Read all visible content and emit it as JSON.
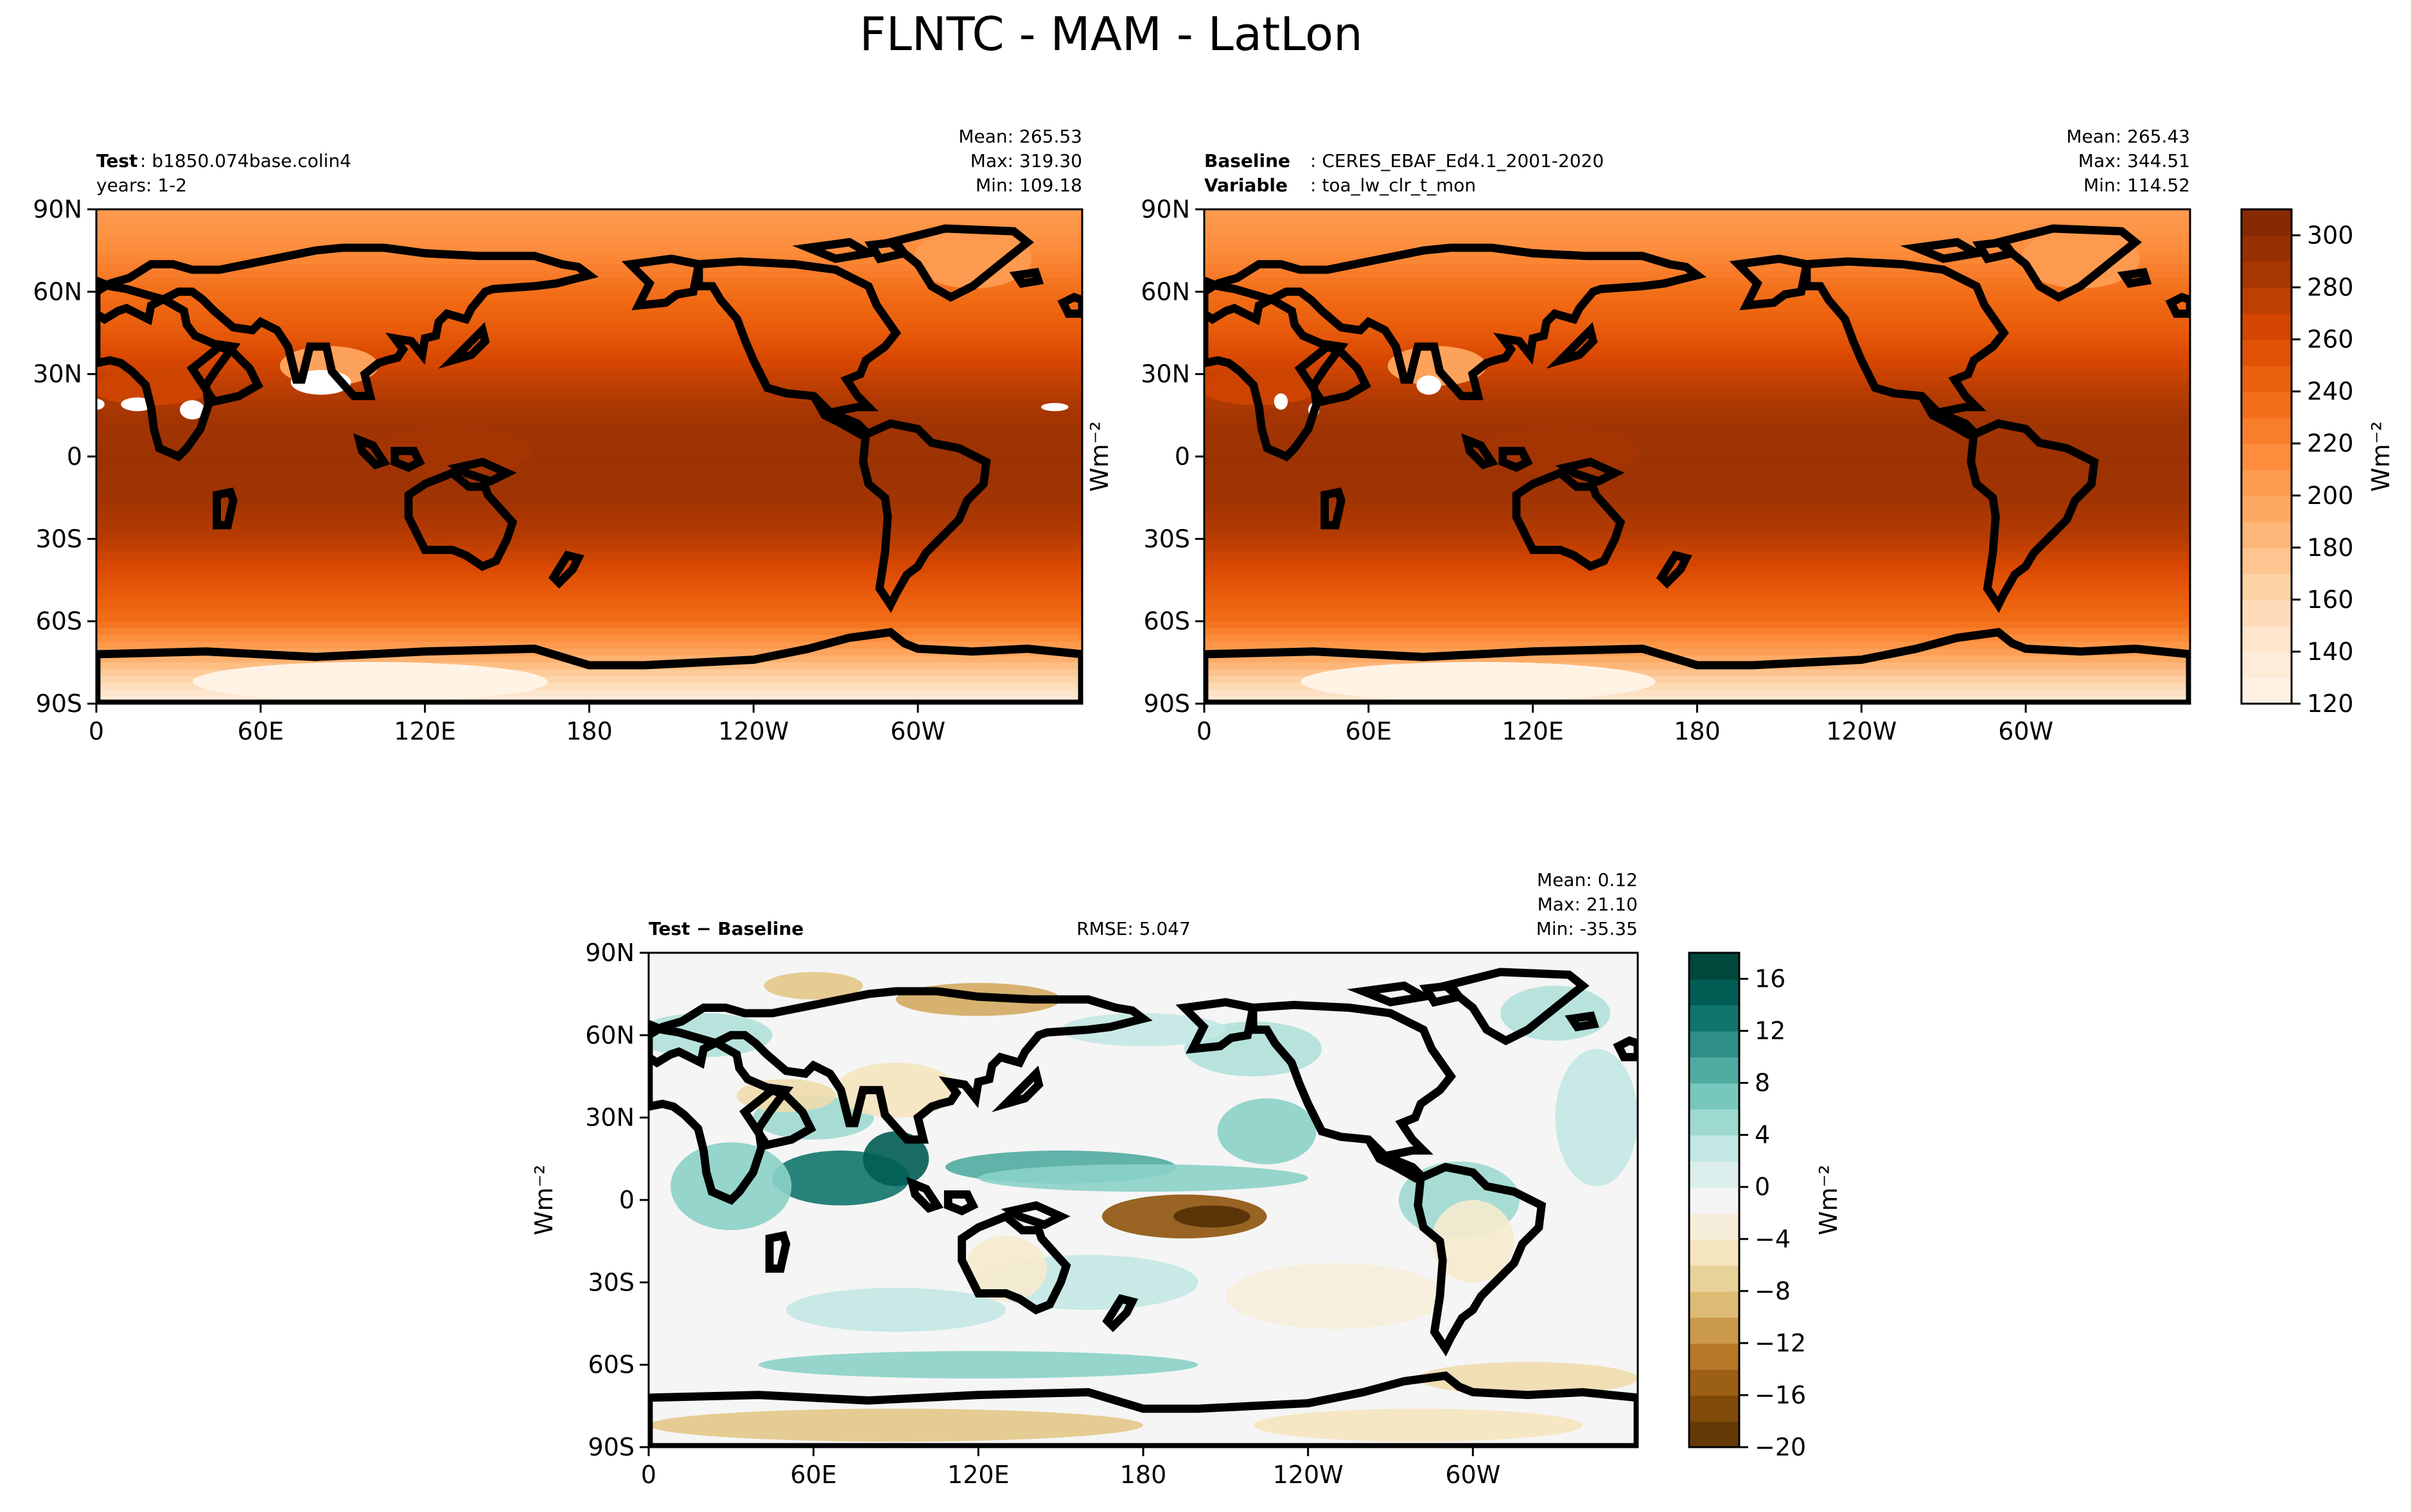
{
  "figure": {
    "title": "FLNTC - MAM - LatLon"
  },
  "colors": {
    "sequential": [
      "#fff5eb",
      "#fee6ce",
      "#fdd0a2",
      "#fdae6b",
      "#fd8d3c",
      "#f16913",
      "#d94801",
      "#a63603",
      "#7f2704"
    ],
    "diverging": [
      "#543005",
      "#8c510a",
      "#bf812d",
      "#dfc27d",
      "#f6e8c3",
      "#f5f5f5",
      "#c7eae5",
      "#80cdc1",
      "#35978f",
      "#01665e",
      "#003c30"
    ],
    "coastline": "#000000",
    "missing": "#ffffff"
  },
  "axes_ticks": {
    "lon_labels": [
      "0",
      "60E",
      "120E",
      "180",
      "120W",
      "60W"
    ],
    "lat_labels": [
      "90N",
      "60N",
      "30N",
      "0",
      "30S",
      "60S",
      "90S"
    ]
  },
  "panels": [
    {
      "id": "test",
      "left_lines": [
        {
          "key": "Test",
          "value": ": b1850.074base.colin4"
        },
        {
          "key": "",
          "value": "years: 1-2"
        }
      ],
      "center_text": "",
      "stats": [
        "Mean: 265.53",
        "Max: 319.30",
        "Min: 109.18"
      ],
      "ylabel": ""
    },
    {
      "id": "baseline",
      "left_lines": [
        {
          "key": "Baseline",
          "value": ": CERES_EBAF_Ed4.1_2001-2020"
        },
        {
          "key": "Variable",
          "value": ": toa_lw_clr_t_mon"
        }
      ],
      "center_text": "",
      "stats": [
        "Mean: 265.43",
        "Max: 344.51",
        "Min: 114.52"
      ],
      "ylabel": "Wm⁻²"
    },
    {
      "id": "diff",
      "left_lines": [
        {
          "key": "Test − Baseline",
          "value": ""
        }
      ],
      "center_text": "RMSE: 5.047",
      "stats": [
        "Mean:  0.12",
        "Max: 21.10",
        "Min: -35.35"
      ],
      "ylabel": "Wm⁻²"
    }
  ],
  "colorbars": [
    {
      "id": "cbar-main",
      "label": "Wm⁻²",
      "range": [
        120,
        310
      ],
      "ticks": [
        "120",
        "140",
        "160",
        "180",
        "200",
        "220",
        "240",
        "260",
        "280",
        "300"
      ],
      "tick_values": [
        120,
        140,
        160,
        180,
        200,
        220,
        240,
        260,
        280,
        300
      ]
    },
    {
      "id": "cbar-diff",
      "label": "Wm⁻²",
      "range": [
        -20,
        18
      ],
      "ticks": [
        "−20",
        "−16",
        "−12",
        "−8",
        "−4",
        "0",
        "4",
        "8",
        "12",
        "16"
      ],
      "tick_values": [
        -20,
        -16,
        -12,
        -8,
        -4,
        0,
        4,
        8,
        12,
        16
      ]
    }
  ],
  "chart_data": [
    {
      "type": "heatmap",
      "title": "Test: b1850.074base.colin4, years: 1-2",
      "xlabel": "",
      "ylabel": "",
      "x_ticks": [
        "0",
        "60E",
        "120E",
        "180",
        "120W",
        "60W"
      ],
      "y_ticks": [
        "90N",
        "60N",
        "30N",
        "0",
        "30S",
        "60S",
        "90S"
      ],
      "xlim": [
        0,
        360
      ],
      "ylim": [
        -90,
        90
      ],
      "color_range": [
        120,
        310
      ],
      "units": "Wm⁻²",
      "stats": {
        "mean": 265.53,
        "max": 319.3,
        "min": 109.18
      },
      "approx_zonal_profile": {
        "lat": [
          90,
          75,
          60,
          45,
          30,
          15,
          0,
          -15,
          -30,
          -45,
          -60,
          -75,
          -90
        ],
        "value": [
          205,
          215,
          235,
          250,
          270,
          288,
          292,
          290,
          278,
          255,
          235,
          185,
          130
        ]
      }
    },
    {
      "type": "heatmap",
      "title": "Baseline: CERES_EBAF_Ed4.1_2001-2020, Variable: toa_lw_clr_t_mon",
      "xlabel": "",
      "ylabel": "Wm⁻²",
      "x_ticks": [
        "0",
        "60E",
        "120E",
        "180",
        "120W",
        "60W"
      ],
      "y_ticks": [
        "90N",
        "60N",
        "30N",
        "0",
        "30S",
        "60S",
        "90S"
      ],
      "xlim": [
        0,
        360
      ],
      "ylim": [
        -90,
        90
      ],
      "color_range": [
        120,
        310
      ],
      "units": "Wm⁻²",
      "stats": {
        "mean": 265.43,
        "max": 344.51,
        "min": 114.52
      },
      "approx_zonal_profile": {
        "lat": [
          90,
          75,
          60,
          45,
          30,
          15,
          0,
          -15,
          -30,
          -45,
          -60,
          -75,
          -90
        ],
        "value": [
          205,
          215,
          235,
          250,
          270,
          288,
          292,
          290,
          278,
          255,
          235,
          190,
          135
        ]
      }
    },
    {
      "type": "heatmap",
      "title": "Test − Baseline",
      "xlabel": "",
      "ylabel": "Wm⁻²",
      "x_ticks": [
        "0",
        "60E",
        "120E",
        "180",
        "120W",
        "60W"
      ],
      "y_ticks": [
        "90N",
        "60N",
        "30N",
        "0",
        "30S",
        "60S",
        "90S"
      ],
      "xlim": [
        0,
        360
      ],
      "ylim": [
        -90,
        90
      ],
      "color_range": [
        -20,
        18
      ],
      "units": "Wm⁻²",
      "stats": {
        "mean": 0.12,
        "max": 21.1,
        "min": -35.35,
        "rmse": 5.047
      }
    }
  ]
}
